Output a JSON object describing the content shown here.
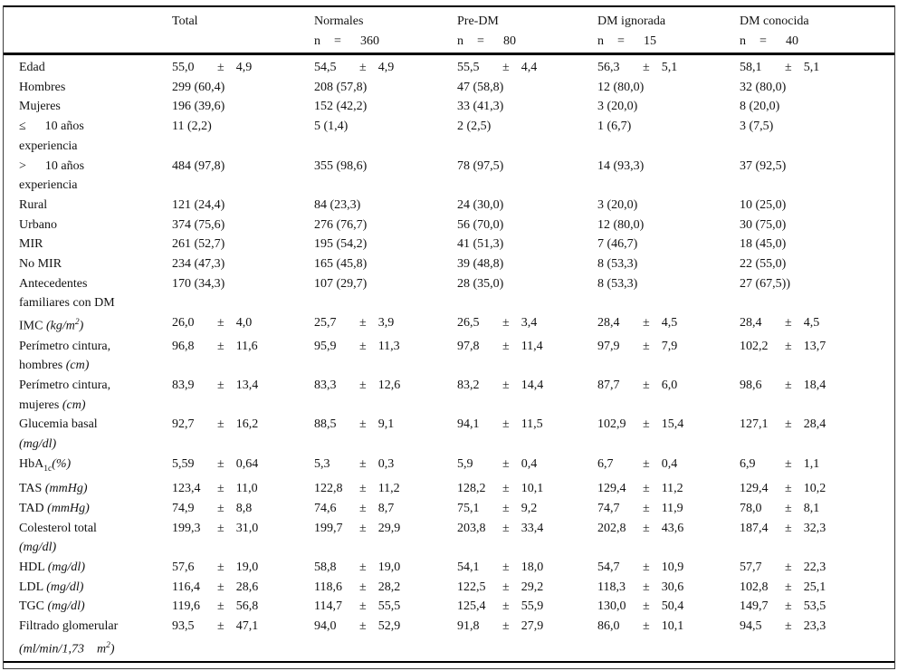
{
  "table": {
    "pm_sign": "±",
    "n_prefix": "n",
    "eq_sign": "=",
    "columns": [
      {
        "label": "Total",
        "n": null
      },
      {
        "label": "Normales",
        "n": "360"
      },
      {
        "label": "Pre-DM",
        "n": "80"
      },
      {
        "label": "DM ignorada",
        "n": "15"
      },
      {
        "label": "DM conocida",
        "n": "40"
      }
    ],
    "rows": [
      {
        "label": [
          "Edad"
        ],
        "cells": [
          {
            "m": "55,0",
            "sd": "4,9"
          },
          {
            "m": "54,5",
            "sd": "4,9"
          },
          {
            "m": "55,5",
            "sd": "4,4"
          },
          {
            "m": "56,3",
            "sd": "5,1"
          },
          {
            "m": "58,1",
            "sd": "5,1"
          }
        ]
      },
      {
        "label": [
          "Hombres"
        ],
        "cells": [
          {
            "v": "299 (60,4)"
          },
          {
            "v": "208 (57,8)"
          },
          {
            "v": "47 (58,8)"
          },
          {
            "v": "12 (80,0)"
          },
          {
            "v": "32 (80,0)"
          }
        ]
      },
      {
        "label": [
          "Mujeres"
        ],
        "cells": [
          {
            "v": "196 (39,6)"
          },
          {
            "v": "152 (42,2)"
          },
          {
            "v": "33 (41,3)"
          },
          {
            "v": "3 (20,0)"
          },
          {
            "v": "8 (20,0)"
          }
        ]
      },
      {
        "label": [
          "≤      10 años",
          "experiencia"
        ],
        "cells": [
          {
            "v": "11 (2,2)"
          },
          {
            "v": "5 (1,4)"
          },
          {
            "v": "2 (2,5)"
          },
          {
            "v": "1 (6,7)"
          },
          {
            "v": "3 (7,5)"
          }
        ]
      },
      {
        "label": [
          ">      10 años",
          "experiencia"
        ],
        "cells": [
          {
            "v": "484 (97,8)"
          },
          {
            "v": "355 (98,6)"
          },
          {
            "v": "78 (97,5)"
          },
          {
            "v": "14 (93,3)"
          },
          {
            "v": "37 (92,5)"
          }
        ]
      },
      {
        "label": [
          "Rural"
        ],
        "cells": [
          {
            "v": "121 (24,4)"
          },
          {
            "v": "84 (23,3)"
          },
          {
            "v": "24 (30,0)"
          },
          {
            "v": "3 (20,0)"
          },
          {
            "v": "10 (25,0)"
          }
        ]
      },
      {
        "label": [
          "Urbano"
        ],
        "cells": [
          {
            "v": "374 (75,6)"
          },
          {
            "v": "276 (76,7)"
          },
          {
            "v": "56 (70,0)"
          },
          {
            "v": "12 (80,0)"
          },
          {
            "v": "30 (75,0)"
          }
        ]
      },
      {
        "label": [
          "MIR"
        ],
        "cells": [
          {
            "v": "261 (52,7)"
          },
          {
            "v": "195 (54,2)"
          },
          {
            "v": "41 (51,3)"
          },
          {
            "v": "7 (46,7)"
          },
          {
            "v": "18 (45,0)"
          }
        ]
      },
      {
        "label": [
          "No MIR"
        ],
        "cells": [
          {
            "v": "234 (47,3)"
          },
          {
            "v": "165 (45,8)"
          },
          {
            "v": "39 (48,8)"
          },
          {
            "v": "8 (53,3)"
          },
          {
            "v": "22 (55,0)"
          }
        ]
      },
      {
        "label": [
          "Antecedentes",
          "familiares con DM"
        ],
        "cells": [
          {
            "v": "170 (34,3)"
          },
          {
            "v": "107 (29,7)"
          },
          {
            "v": "28 (35,0)"
          },
          {
            "v": "8 (53,3)"
          },
          {
            "v": "27 (67,5))"
          }
        ]
      },
      {
        "label": [
          [
            {
              "t": "IMC "
            },
            {
              "t": "(kg/m",
              "i": 1
            },
            {
              "t": "2",
              "i": 1,
              "v2": "sup"
            },
            {
              "t": ")",
              "i": 1
            }
          ]
        ],
        "cells": [
          {
            "m": "26,0",
            "sd": "4,0"
          },
          {
            "m": "25,7",
            "sd": "3,9"
          },
          {
            "m": "26,5",
            "sd": "3,4"
          },
          {
            "m": "28,4",
            "sd": "4,5"
          },
          {
            "m": "28,4",
            "sd": "4,5"
          }
        ]
      },
      {
        "label": [
          "Perímetro cintura,",
          [
            {
              "t": "hombres "
            },
            {
              "t": "(cm)",
              "i": 1
            }
          ]
        ],
        "cells": [
          {
            "m": "96,8",
            "sd": "11,6"
          },
          {
            "m": "95,9",
            "sd": "11,3"
          },
          {
            "m": "97,8",
            "sd": "11,4"
          },
          {
            "m": "97,9",
            "sd": "7,9"
          },
          {
            "m": "102,2",
            "sd": "13,7"
          }
        ]
      },
      {
        "label": [
          "Perímetro cintura,",
          [
            {
              "t": "mujeres "
            },
            {
              "t": "(cm)",
              "i": 1
            }
          ]
        ],
        "cells": [
          {
            "m": "83,9",
            "sd": "13,4"
          },
          {
            "m": "83,3",
            "sd": "12,6"
          },
          {
            "m": "83,2",
            "sd": "14,4"
          },
          {
            "m": "87,7",
            "sd": "6,0"
          },
          {
            "m": "98,6",
            "sd": "18,4"
          }
        ]
      },
      {
        "label": [
          "Glucemia basal",
          [
            {
              "t": "(mg/dl)",
              "i": 1
            }
          ]
        ],
        "cells": [
          {
            "m": "92,7",
            "sd": "16,2"
          },
          {
            "m": "88,5",
            "sd": "9,1"
          },
          {
            "m": "94,1",
            "sd": "11,5"
          },
          {
            "m": "102,9",
            "sd": "15,4"
          },
          {
            "m": "127,1",
            "sd": "28,4"
          }
        ]
      },
      {
        "label": [
          [
            {
              "t": "HbA"
            },
            {
              "t": "1c",
              "v2": "sub"
            },
            {
              "t": "(%)",
              "i": 1
            }
          ]
        ],
        "cells": [
          {
            "m": "5,59",
            "sd": "0,64"
          },
          {
            "m": "5,3",
            "sd": "0,3"
          },
          {
            "m": "5,9",
            "sd": "0,4"
          },
          {
            "m": "6,7",
            "sd": "0,4"
          },
          {
            "m": "6,9",
            "sd": "1,1"
          }
        ]
      },
      {
        "label": [
          [
            {
              "t": "TAS "
            },
            {
              "t": "(mmHg)",
              "i": 1
            }
          ]
        ],
        "cells": [
          {
            "m": "123,4",
            "sd": "11,0"
          },
          {
            "m": "122,8",
            "sd": "11,2"
          },
          {
            "m": "128,2",
            "sd": "10,1"
          },
          {
            "m": "129,4",
            "sd": "11,2"
          },
          {
            "m": "129,4",
            "sd": "10,2"
          }
        ]
      },
      {
        "label": [
          [
            {
              "t": "TAD "
            },
            {
              "t": "(mmHg)",
              "i": 1
            }
          ]
        ],
        "cells": [
          {
            "m": "74,9",
            "sd": "8,8"
          },
          {
            "m": "74,6",
            "sd": "8,7"
          },
          {
            "m": "75,1",
            "sd": "9,2"
          },
          {
            "m": "74,7",
            "sd": "11,9"
          },
          {
            "m": "78,0",
            "sd": "8,1"
          }
        ]
      },
      {
        "label": [
          "Colesterol total",
          [
            {
              "t": "(mg/dl)",
              "i": 1
            }
          ]
        ],
        "cells": [
          {
            "m": "199,3",
            "sd": "31,0"
          },
          {
            "m": "199,7",
            "sd": "29,9"
          },
          {
            "m": "203,8",
            "sd": "33,4"
          },
          {
            "m": "202,8",
            "sd": "43,6"
          },
          {
            "m": "187,4",
            "sd": "32,3"
          }
        ]
      },
      {
        "label": [
          [
            {
              "t": "HDL "
            },
            {
              "t": "(mg/dl)",
              "i": 1
            }
          ]
        ],
        "cells": [
          {
            "m": "57,6",
            "sd": "19,0"
          },
          {
            "m": "58,8",
            "sd": "19,0"
          },
          {
            "m": "54,1",
            "sd": "18,0"
          },
          {
            "m": "54,7",
            "sd": "10,9"
          },
          {
            "m": "57,7",
            "sd": "22,3"
          }
        ]
      },
      {
        "label": [
          [
            {
              "t": "LDL "
            },
            {
              "t": "(mg/dl)",
              "i": 1
            }
          ]
        ],
        "cells": [
          {
            "m": "116,4",
            "sd": "28,6"
          },
          {
            "m": "118,6",
            "sd": "28,2"
          },
          {
            "m": "122,5",
            "sd": "29,2"
          },
          {
            "m": "118,3",
            "sd": "30,6"
          },
          {
            "m": "102,8",
            "sd": "25,1"
          }
        ]
      },
      {
        "label": [
          [
            {
              "t": "TGC "
            },
            {
              "t": "(mg/dl)",
              "i": 1
            }
          ]
        ],
        "cells": [
          {
            "m": "119,6",
            "sd": "56,8"
          },
          {
            "m": "114,7",
            "sd": "55,5"
          },
          {
            "m": "125,4",
            "sd": "55,9"
          },
          {
            "m": "130,0",
            "sd": "50,4"
          },
          {
            "m": "149,7",
            "sd": "53,5"
          }
        ]
      },
      {
        "label": [
          "Filtrado glomerular",
          [
            {
              "t": "(ml/min/1,73    m",
              "i": 1
            },
            {
              "t": "2",
              "i": 1,
              "v2": "sup"
            },
            {
              "t": ")",
              "i": 1
            }
          ]
        ],
        "cells": [
          {
            "m": "93,5",
            "sd": "47,1"
          },
          {
            "m": "94,0",
            "sd": "52,9"
          },
          {
            "m": "91,8",
            "sd": "27,9"
          },
          {
            "m": "86,0",
            "sd": "10,1"
          },
          {
            "m": "94,5",
            "sd": "23,3"
          }
        ]
      }
    ]
  }
}
